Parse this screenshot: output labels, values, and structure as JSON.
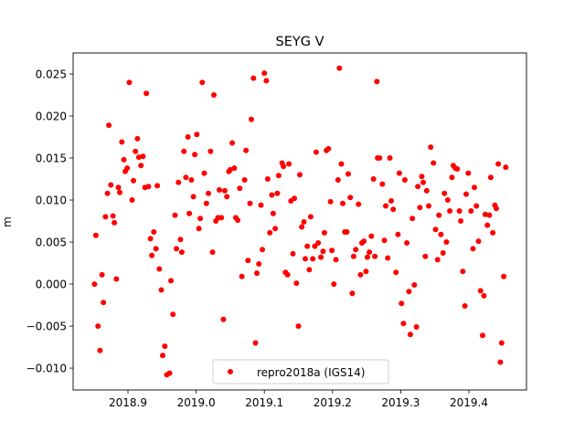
{
  "chart_data": {
    "type": "scatter",
    "title": "SEYG V",
    "xlabel": "",
    "ylabel": "m",
    "xlim": [
      2018.8196,
      2019.4844
    ],
    "ylim": [
      -0.0126,
      0.0275
    ],
    "xticks": [
      2018.9,
      2019.0,
      2019.1,
      2019.2,
      2019.3,
      2019.4
    ],
    "xtick_labels": [
      "2018.9",
      "2019.0",
      "2019.1",
      "2019.2",
      "2019.3",
      "2019.4"
    ],
    "yticks": [
      0.025,
      0.02,
      0.015,
      0.01,
      0.005,
      0.0,
      -0.005,
      -0.01
    ],
    "ytick_labels": [
      "0.025",
      "0.020",
      "0.015",
      "0.010",
      "0.005",
      "0.000",
      "−0.005",
      "−0.010"
    ],
    "grid": false,
    "legend_position": "lower-center",
    "series": [
      {
        "name": "repro2018a (IGS14)",
        "color": "#ff0000",
        "marker": "circle",
        "points": [
          [
            2018.902,
            0.024
          ],
          [
            2019.009,
            0.024
          ],
          [
            2018.927,
            0.0227
          ],
          [
            2019.026,
            0.0225
          ],
          [
            2018.872,
            0.0189
          ],
          [
            2018.988,
            0.0175
          ],
          [
            2019.001,
            0.0178
          ],
          [
            2018.891,
            0.0169
          ],
          [
            2018.914,
            0.0173
          ],
          [
            2018.911,
            0.0158
          ],
          [
            2018.982,
            0.0158
          ],
          [
            2019.021,
            0.0158
          ],
          [
            2018.894,
            0.0148
          ],
          [
            2018.916,
            0.0151
          ],
          [
            2018.922,
            0.0152
          ],
          [
            2018.998,
            0.0154
          ],
          [
            2018.899,
            0.0138
          ],
          [
            2018.896,
            0.0134
          ],
          [
            2018.919,
            0.0141
          ],
          [
            2019.012,
            0.0132
          ],
          [
            2018.908,
            0.0123
          ],
          [
            2018.985,
            0.0127
          ],
          [
            2018.993,
            0.0124
          ],
          [
            2018.974,
            0.0121
          ],
          [
            2018.875,
            0.0118
          ],
          [
            2018.886,
            0.0115
          ],
          [
            2018.888,
            0.0109
          ],
          [
            2018.87,
            0.0108
          ],
          [
            2018.925,
            0.0115
          ],
          [
            2018.93,
            0.0116
          ],
          [
            2018.943,
            0.0117
          ],
          [
            2019.018,
            0.0108
          ],
          [
            2019.034,
            0.0112
          ],
          [
            2019.042,
            0.0111
          ],
          [
            2019.045,
            0.0104
          ],
          [
            2018.996,
            0.0104
          ],
          [
            2018.906,
            0.01
          ],
          [
            2019.015,
            0.0096
          ],
          [
            2018.969,
            0.0082
          ],
          [
            2018.99,
            0.0084
          ],
          [
            2018.867,
            0.008
          ],
          [
            2018.878,
            0.0081
          ],
          [
            2018.88,
            0.0073
          ],
          [
            2019.006,
            0.0078
          ],
          [
            2019.029,
            0.0075
          ],
          [
            2019.032,
            0.0079
          ],
          [
            2019.037,
            0.0079
          ],
          [
            2019.004,
            0.0066
          ],
          [
            2018.853,
            0.0058
          ],
          [
            2018.938,
            0.0062
          ],
          [
            2018.933,
            0.0054
          ],
          [
            2018.977,
            0.0053
          ],
          [
            2018.941,
            0.0042
          ],
          [
            2018.935,
            0.0034
          ],
          [
            2018.971,
            0.0042
          ],
          [
            2018.979,
            0.0038
          ],
          [
            2019.024,
            0.0038
          ],
          [
            2018.946,
            0.0018
          ],
          [
            2018.862,
            0.0011
          ],
          [
            2018.851,
            0.0
          ],
          [
            2018.883,
            0.0006
          ],
          [
            2018.963,
            0.0004
          ],
          [
            2018.949,
            -0.0007
          ],
          [
            2018.864,
            -0.0022
          ],
          [
            2018.966,
            -0.0036
          ],
          [
            2019.04,
            -0.0042
          ],
          [
            2018.856,
            -0.005
          ],
          [
            2018.954,
            -0.0074
          ],
          [
            2018.951,
            -0.0085
          ],
          [
            2018.859,
            -0.0079
          ],
          [
            2018.957,
            -0.0108
          ],
          [
            2018.961,
            -0.0106
          ],
          [
            2019.21,
            0.0257
          ],
          [
            2019.084,
            0.0245
          ],
          [
            2019.1,
            0.0251
          ],
          [
            2019.103,
            0.0242
          ],
          [
            2019.265,
            0.0241
          ],
          [
            2019.081,
            0.0196
          ],
          [
            2019.053,
            0.0168
          ],
          [
            2019.073,
            0.0159
          ],
          [
            2019.176,
            0.0157
          ],
          [
            2019.191,
            0.0159
          ],
          [
            2019.194,
            0.0161
          ],
          [
            2019.266,
            0.015
          ],
          [
            2019.048,
            0.0134
          ],
          [
            2019.05,
            0.0136
          ],
          [
            2019.056,
            0.0138
          ],
          [
            2019.126,
            0.0144
          ],
          [
            2019.128,
            0.014
          ],
          [
            2019.136,
            0.0143
          ],
          [
            2019.213,
            0.0143
          ],
          [
            2019.223,
            0.0131
          ],
          [
            2019.152,
            0.013
          ],
          [
            2019.121,
            0.0129
          ],
          [
            2019.105,
            0.0125
          ],
          [
            2019.071,
            0.0124
          ],
          [
            2019.208,
            0.0124
          ],
          [
            2019.26,
            0.0125
          ],
          [
            2019.064,
            0.0114
          ],
          [
            2019.111,
            0.0106
          ],
          [
            2019.119,
            0.0108
          ],
          [
            2019.139,
            0.0099
          ],
          [
            2019.144,
            0.0102
          ],
          [
            2019.079,
            0.0096
          ],
          [
            2019.095,
            0.0094
          ],
          [
            2019.197,
            0.0098
          ],
          [
            2019.215,
            0.0096
          ],
          [
            2019.226,
            0.0103
          ],
          [
            2019.238,
            0.0095
          ],
          [
            2019.113,
            0.0084
          ],
          [
            2019.058,
            0.0079
          ],
          [
            2019.061,
            0.0076
          ],
          [
            2019.168,
            0.008
          ],
          [
            2019.158,
            0.0074
          ],
          [
            2019.155,
            0.0068
          ],
          [
            2019.108,
            0.0061
          ],
          [
            2019.116,
            0.0066
          ],
          [
            2019.188,
            0.0061
          ],
          [
            2019.218,
            0.0062
          ],
          [
            2019.221,
            0.0062
          ],
          [
            2019.257,
            0.0057
          ],
          [
            2019.243,
            0.0049
          ],
          [
            2019.246,
            0.0051
          ],
          [
            2019.163,
            0.0045
          ],
          [
            2019.174,
            0.0045
          ],
          [
            2019.179,
            0.0049
          ],
          [
            2019.097,
            0.0041
          ],
          [
            2019.186,
            0.0039
          ],
          [
            2019.199,
            0.004
          ],
          [
            2019.234,
            0.0041
          ],
          [
            2019.254,
            0.0038
          ],
          [
            2019.142,
            0.0036
          ],
          [
            2019.183,
            0.0032
          ],
          [
            2019.231,
            0.0033
          ],
          [
            2019.251,
            0.0032
          ],
          [
            2019.262,
            0.0033
          ],
          [
            2019.16,
            0.003
          ],
          [
            2019.171,
            0.003
          ],
          [
            2019.205,
            0.0029
          ],
          [
            2019.076,
            0.0028
          ],
          [
            2019.092,
            0.0024
          ],
          [
            2019.166,
            0.0017
          ],
          [
            2019.089,
            0.0013
          ],
          [
            2019.067,
            0.0009
          ],
          [
            2019.131,
            0.0014
          ],
          [
            2019.134,
            0.0011
          ],
          [
            2019.241,
            0.0011
          ],
          [
            2019.249,
            0.0015
          ],
          [
            2019.147,
            0.0001
          ],
          [
            2019.202,
            0.0
          ],
          [
            2019.229,
            -0.0011
          ],
          [
            2019.15,
            -0.005
          ],
          [
            2019.087,
            -0.007
          ],
          [
            2019.344,
            0.0163
          ],
          [
            2019.269,
            0.015
          ],
          [
            2019.284,
            0.015
          ],
          [
            2019.348,
            0.0144
          ],
          [
            2019.443,
            0.0143
          ],
          [
            2019.454,
            0.0139
          ],
          [
            2019.377,
            0.0141
          ],
          [
            2019.38,
            0.0138
          ],
          [
            2019.383,
            0.0137
          ],
          [
            2019.298,
            0.0132
          ],
          [
            2019.399,
            0.0132
          ],
          [
            2019.306,
            0.0124
          ],
          [
            2019.331,
            0.0128
          ],
          [
            2019.333,
            0.0121
          ],
          [
            2019.325,
            0.0116
          ],
          [
            2019.375,
            0.0127
          ],
          [
            2019.432,
            0.0127
          ],
          [
            2019.273,
            0.0119
          ],
          [
            2019.408,
            0.0115
          ],
          [
            2019.338,
            0.0111
          ],
          [
            2019.364,
            0.0108
          ],
          [
            2019.396,
            0.0107
          ],
          [
            2019.369,
            0.01
          ],
          [
            2019.286,
            0.0099
          ],
          [
            2019.278,
            0.0093
          ],
          [
            2019.289,
            0.0089
          ],
          [
            2019.328,
            0.0091
          ],
          [
            2019.341,
            0.0093
          ],
          [
            2019.411,
            0.0093
          ],
          [
            2019.438,
            0.0094
          ],
          [
            2019.44,
            0.009
          ],
          [
            2019.372,
            0.0087
          ],
          [
            2019.386,
            0.0087
          ],
          [
            2019.403,
            0.0087
          ],
          [
            2019.424,
            0.0083
          ],
          [
            2019.43,
            0.0082
          ],
          [
            2019.356,
            0.0082
          ],
          [
            2019.317,
            0.0078
          ],
          [
            2019.388,
            0.0075
          ],
          [
            2019.427,
            0.007
          ],
          [
            2019.351,
            0.0065
          ],
          [
            2019.359,
            0.0059
          ],
          [
            2019.296,
            0.0059
          ],
          [
            2019.435,
            0.0061
          ],
          [
            2019.276,
            0.0052
          ],
          [
            2019.309,
            0.0049
          ],
          [
            2019.367,
            0.005
          ],
          [
            2019.414,
            0.0051
          ],
          [
            2019.406,
            0.0042
          ],
          [
            2019.362,
            0.0037
          ],
          [
            2019.336,
            0.0033
          ],
          [
            2019.354,
            0.0029
          ],
          [
            2019.281,
            0.0031
          ],
          [
            2019.293,
            0.0014
          ],
          [
            2019.391,
            0.0015
          ],
          [
            2019.451,
            0.0009
          ],
          [
            2019.32,
            -0.0001
          ],
          [
            2019.312,
            -0.0009
          ],
          [
            2019.417,
            -0.0008
          ],
          [
            2019.422,
            -0.0014
          ],
          [
            2019.301,
            -0.0023
          ],
          [
            2019.394,
            -0.0026
          ],
          [
            2019.304,
            -0.0047
          ],
          [
            2019.323,
            -0.0051
          ],
          [
            2019.314,
            -0.006
          ],
          [
            2019.42,
            -0.0061
          ],
          [
            2019.448,
            -0.007
          ],
          [
            2019.446,
            -0.0093
          ]
        ]
      }
    ]
  }
}
